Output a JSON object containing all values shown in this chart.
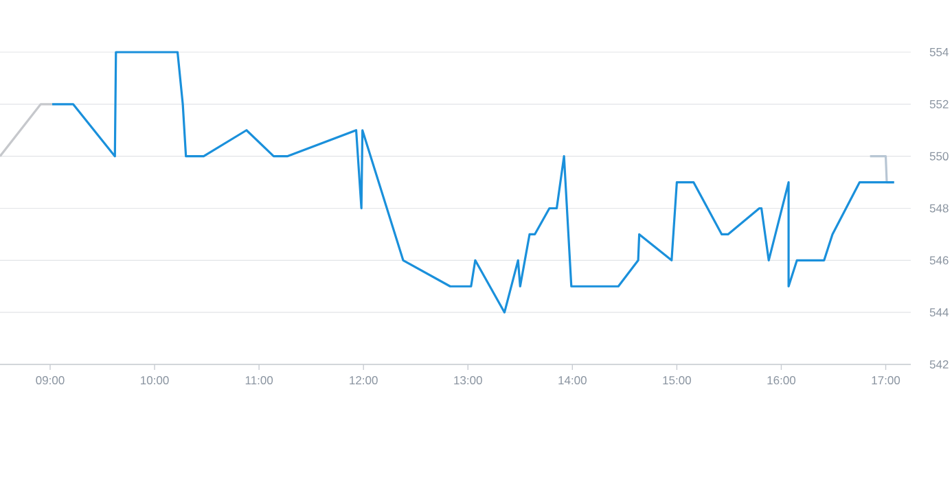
{
  "chart_data": {
    "type": "line",
    "xlim": [
      8.52,
      17.24
    ],
    "ylim": [
      542,
      554
    ],
    "xticks": [
      {
        "value": 9,
        "label": "09:00"
      },
      {
        "value": 10,
        "label": "10:00"
      },
      {
        "value": 11,
        "label": "11:00"
      },
      {
        "value": 12,
        "label": "12:00"
      },
      {
        "value": 13,
        "label": "13:00"
      },
      {
        "value": 14,
        "label": "14:00"
      },
      {
        "value": 15,
        "label": "15:00"
      },
      {
        "value": 16,
        "label": "16:00"
      },
      {
        "value": 17,
        "label": "17:00"
      }
    ],
    "yticks": [
      542,
      544,
      546,
      548,
      550,
      552,
      554
    ],
    "grid": "y",
    "series": [
      {
        "color": "#c6c8cc",
        "x": [
          8.52,
          8.91,
          9.02
        ],
        "values": [
          550,
          552,
          552
        ]
      },
      {
        "color": "#b8c6d4",
        "x": [
          16.85,
          17.0,
          17.01,
          17.08
        ],
        "values": [
          550,
          550,
          549,
          549
        ]
      },
      {
        "color": "#1a90db",
        "x": [
          9.02,
          9.22,
          9.62,
          9.63,
          10.22,
          10.27,
          10.3,
          10.47,
          10.88,
          11.14,
          11.27,
          11.93,
          11.98,
          11.99,
          12.38,
          12.83,
          13.03,
          13.07,
          13.35,
          13.48,
          13.5,
          13.59,
          13.64,
          13.78,
          13.85,
          13.92,
          13.99,
          14.44,
          14.63,
          14.64,
          14.95,
          15.0,
          15.16,
          15.43,
          15.49,
          15.79,
          15.81,
          15.88,
          16.07,
          16.07,
          16.15,
          16.41,
          16.49,
          16.75,
          17.08
        ],
        "values": [
          552,
          552,
          550,
          554,
          554,
          552,
          550,
          550,
          551,
          550,
          550,
          551,
          548,
          551,
          546,
          545,
          545,
          546,
          544,
          546,
          545,
          547,
          547,
          548,
          548,
          550,
          545,
          545,
          546,
          547,
          546,
          549,
          549,
          547,
          547,
          548,
          548,
          546,
          549,
          545,
          546,
          546,
          547,
          549,
          549
        ]
      }
    ]
  }
}
